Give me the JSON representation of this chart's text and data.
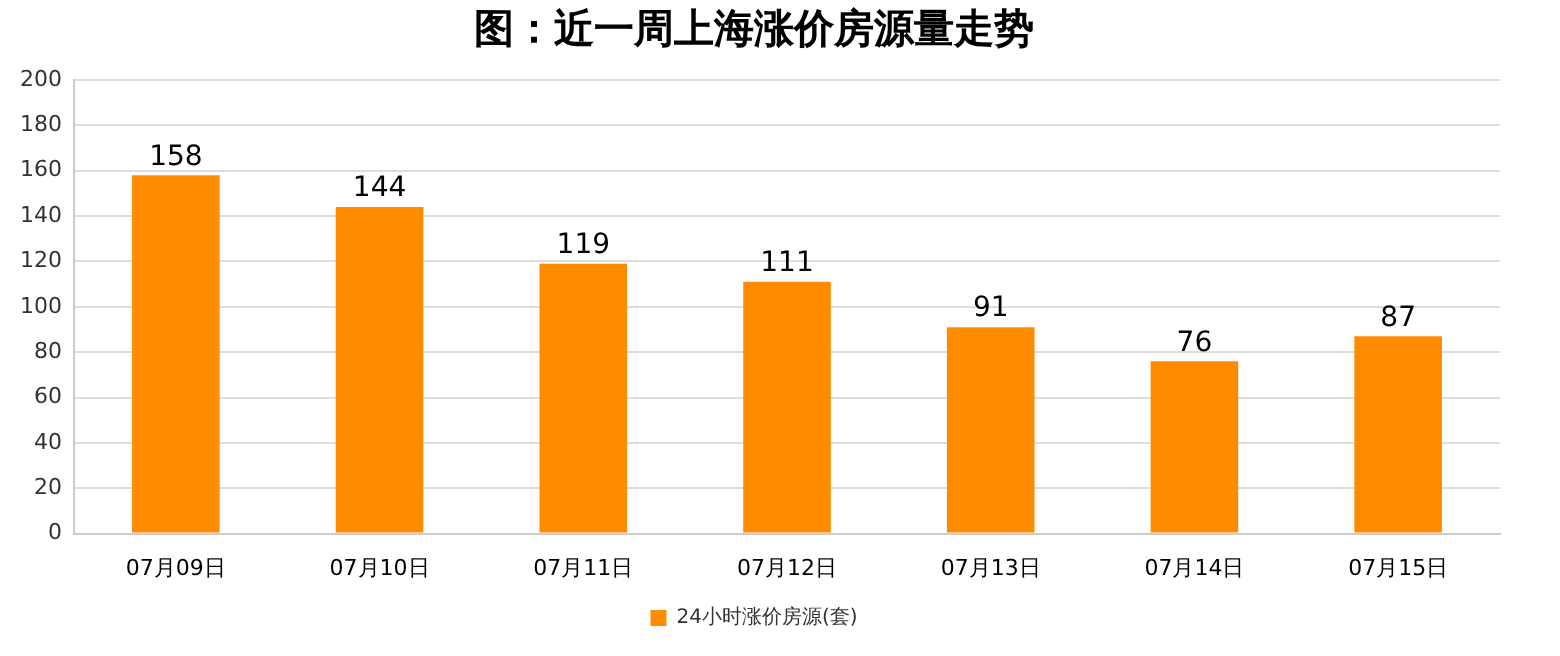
{
  "chart_data": {
    "type": "bar",
    "title": "图：近一周上海涨价房源量走势",
    "categories": [
      "07月09日",
      "07月10日",
      "07月11日",
      "07月12日",
      "07月13日",
      "07月14日",
      "07月15日"
    ],
    "series": [
      {
        "name": "24小时涨价房源(套)",
        "color": "#ff8c00",
        "values": [
          158,
          144,
          119,
          111,
          91,
          76,
          87
        ]
      }
    ],
    "ylim": [
      0,
      200
    ],
    "yticks": [
      0,
      20,
      40,
      60,
      80,
      100,
      120,
      140,
      160,
      180,
      200
    ],
    "grid": "y",
    "legend": "bottom",
    "data_labels": true
  }
}
